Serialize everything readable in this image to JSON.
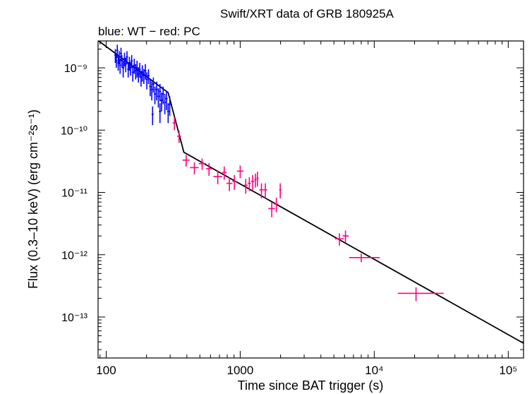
{
  "chart_data": {
    "type": "scatter",
    "title": "Swift/XRT data of GRB 180925A",
    "subtitle": "blue: WT − red: PC",
    "xlabel": "Time since BAT trigger (s)",
    "ylabel": "Flux (0.3–10 keV) (erg cm⁻²s⁻¹)",
    "x_scale": "log",
    "y_scale": "log",
    "xlim": [
      87,
      130000
    ],
    "ylim": [
      2.2e-14,
      2.7e-09
    ],
    "x_ticks": [
      {
        "value": 100,
        "label": "100"
      },
      {
        "value": 1000,
        "label": "1000"
      },
      {
        "value": 10000,
        "label": "10⁴"
      },
      {
        "value": 100000,
        "label": "10⁵"
      }
    ],
    "y_ticks": [
      {
        "value": 1e-09,
        "label": "10⁻⁹"
      },
      {
        "value": 1e-10,
        "label": "10⁻¹⁰"
      },
      {
        "value": 1e-11,
        "label": "10⁻¹¹"
      },
      {
        "value": 1e-12,
        "label": "10⁻¹²"
      },
      {
        "value": 1e-13,
        "label": "10⁻¹³"
      }
    ],
    "series": [
      {
        "mode": "WT",
        "color": "#0000ff",
        "points": [
          {
            "t": 117,
            "f": 1.6e-09,
            "fe": 4e-10
          },
          {
            "t": 119,
            "f": 1.3e-09,
            "fe": 3e-10
          },
          {
            "t": 121,
            "f": 1.9e-09,
            "fe": 4.5e-10
          },
          {
            "t": 123,
            "f": 1.2e-09,
            "fe": 3e-10
          },
          {
            "t": 125,
            "f": 1.5e-09,
            "fe": 3.5e-10
          },
          {
            "t": 127,
            "f": 1.1e-09,
            "fe": 3e-10
          },
          {
            "t": 129,
            "f": 1.7e-09,
            "fe": 4e-10
          },
          {
            "t": 131,
            "f": 1.3e-09,
            "fe": 3e-10
          },
          {
            "t": 134,
            "f": 1e-09,
            "fe": 3e-10
          },
          {
            "t": 137,
            "f": 1.4e-09,
            "fe": 3.5e-10
          },
          {
            "t": 140,
            "f": 1.15e-09,
            "fe": 3e-10
          },
          {
            "t": 143,
            "f": 1.5e-09,
            "fe": 3.5e-10
          },
          {
            "t": 146,
            "f": 9.5e-10,
            "fe": 2.5e-10
          },
          {
            "t": 149,
            "f": 1.2e-09,
            "fe": 3e-10
          },
          {
            "t": 152,
            "f": 1e-09,
            "fe": 2.5e-10
          },
          {
            "t": 155,
            "f": 1.3e-09,
            "fe": 3e-10
          },
          {
            "t": 158,
            "f": 8.5e-10,
            "fe": 2.5e-10
          },
          {
            "t": 162,
            "f": 1.1e-09,
            "fe": 3e-10
          },
          {
            "t": 166,
            "f": 9e-10,
            "fe": 2.5e-10
          },
          {
            "t": 170,
            "f": 1e-09,
            "fe": 3e-10
          },
          {
            "t": 174,
            "f": 8e-10,
            "fe": 2.2e-10
          },
          {
            "t": 178,
            "f": 9.5e-10,
            "fe": 2.5e-10
          },
          {
            "t": 182,
            "f": 7e-10,
            "fe": 2e-10
          },
          {
            "t": 186,
            "f": 8.5e-10,
            "fe": 2.5e-10
          },
          {
            "t": 191,
            "f": 7.5e-10,
            "fe": 2e-10
          },
          {
            "t": 196,
            "f": 9e-10,
            "fe": 2.5e-10
          },
          {
            "t": 201,
            "f": 6.5e-10,
            "fe": 2e-10
          },
          {
            "t": 207,
            "f": 7.5e-10,
            "fe": 2e-10
          },
          {
            "t": 213,
            "f": 5e-10,
            "fe": 1.5e-10
          },
          {
            "t": 219,
            "f": 4.5e-10,
            "fe": 1.5e-10
          },
          {
            "t": 225,
            "f": 5.5e-10,
            "fe": 1.5e-10
          },
          {
            "t": 231,
            "f": 3.8e-10,
            "fe": 1.2e-10
          },
          {
            "t": 238,
            "f": 4.5e-10,
            "fe": 1.5e-10
          },
          {
            "t": 245,
            "f": 3.5e-10,
            "fe": 1.2e-10
          },
          {
            "t": 252,
            "f": 4.2e-10,
            "fe": 1.3e-10
          },
          {
            "t": 259,
            "f": 3e-10,
            "fe": 1e-10
          },
          {
            "t": 266,
            "f": 3.8e-10,
            "fe": 1.2e-10
          },
          {
            "t": 274,
            "f": 2.8e-10,
            "fe": 1e-10
          },
          {
            "t": 282,
            "f": 3.2e-10,
            "fe": 1.1e-10
          },
          {
            "t": 290,
            "f": 2e-10,
            "fe": 7e-11
          },
          {
            "t": 298,
            "f": 2.6e-10,
            "fe": 9e-11
          },
          {
            "t": 222,
            "f": 1.8e-10,
            "fe": 6e-11
          },
          {
            "t": 252,
            "f": 2e-10,
            "fe": 7e-11
          }
        ]
      },
      {
        "mode": "PC",
        "color": "#ff0080",
        "points": [
          {
            "t": 323,
            "t_lo": 313,
            "t_hi": 333,
            "f": 1.3e-10,
            "fe": 3e-11
          },
          {
            "t": 350,
            "t_lo": 338,
            "t_hi": 362,
            "f": 8e-11,
            "fe": 1.8e-11
          },
          {
            "t": 395,
            "t_lo": 372,
            "t_hi": 420,
            "f": 3.3e-11,
            "fe": 7e-12
          },
          {
            "t": 455,
            "t_lo": 422,
            "t_hi": 490,
            "f": 2.5e-11,
            "fe": 5.5e-12
          },
          {
            "t": 520,
            "t_lo": 490,
            "t_hi": 555,
            "f": 2.9e-11,
            "fe": 6e-12
          },
          {
            "t": 585,
            "t_lo": 555,
            "t_hi": 620,
            "f": 2.4e-11,
            "fe": 5.5e-12
          },
          {
            "t": 680,
            "t_lo": 630,
            "t_hi": 735,
            "f": 1.8e-11,
            "fe": 4.5e-12
          },
          {
            "t": 760,
            "t_lo": 735,
            "t_hi": 790,
            "f": 2.1e-11,
            "fe": 5e-12
          },
          {
            "t": 830,
            "t_lo": 790,
            "t_hi": 875,
            "f": 1.4e-11,
            "fe": 3.5e-12
          },
          {
            "t": 905,
            "t_lo": 875,
            "t_hi": 940,
            "f": 1.5e-11,
            "fe": 4e-12
          },
          {
            "t": 1000,
            "t_lo": 945,
            "t_hi": 1060,
            "f": 2.2e-11,
            "fe": 5e-12
          },
          {
            "t": 1100,
            "t_lo": 1065,
            "t_hi": 1135,
            "f": 1.3e-11,
            "fe": 3.5e-12
          },
          {
            "t": 1170,
            "t_lo": 1140,
            "t_hi": 1200,
            "f": 1.4e-11,
            "fe": 3.5e-12
          },
          {
            "t": 1240,
            "t_lo": 1205,
            "t_hi": 1275,
            "f": 1.5e-11,
            "fe": 4e-12
          },
          {
            "t": 1300,
            "t_lo": 1275,
            "t_hi": 1325,
            "f": 1.6e-11,
            "fe": 4e-12
          },
          {
            "t": 1345,
            "t_lo": 1325,
            "t_hi": 1370,
            "f": 1.7e-11,
            "fe": 4.5e-12
          },
          {
            "t": 1440,
            "t_lo": 1390,
            "t_hi": 1490,
            "f": 1.1e-11,
            "fe": 3e-12
          },
          {
            "t": 1540,
            "t_lo": 1495,
            "t_hi": 1590,
            "f": 1.1e-11,
            "fe": 3e-12
          },
          {
            "t": 1720,
            "t_lo": 1620,
            "t_hi": 1820,
            "f": 5.5e-12,
            "fe": 1.5e-12
          },
          {
            "t": 1860,
            "t_lo": 1800,
            "t_hi": 1925,
            "f": 6.5e-12,
            "fe": 1.7e-12
          },
          {
            "t": 1990,
            "t_lo": 1955,
            "t_hi": 2025,
            "f": 1.1e-11,
            "fe": 3e-12
          },
          {
            "t": 5500,
            "t_lo": 5100,
            "t_hi": 5950,
            "f": 1.8e-12,
            "fe": 4e-13
          },
          {
            "t": 6100,
            "t_lo": 5800,
            "t_hi": 6450,
            "f": 2e-12,
            "fe": 4.5e-13
          },
          {
            "t": 8000,
            "t_lo": 6500,
            "t_hi": 11000,
            "f": 9e-13,
            "fe": 1.4e-13
          },
          {
            "t": 20500,
            "t_lo": 15000,
            "t_hi": 33000,
            "f": 2.4e-13,
            "fe": 6e-14
          }
        ]
      }
    ],
    "model": {
      "type": "broken power law",
      "color": "#000000",
      "points": [
        {
          "t": 88,
          "f": 2.7e-09
        },
        {
          "t": 290,
          "f": 4e-10
        },
        {
          "t": 380,
          "f": 4.4e-11
        },
        {
          "t": 130000,
          "f": 3.8e-14
        }
      ]
    },
    "grid": false,
    "legend": "none"
  }
}
